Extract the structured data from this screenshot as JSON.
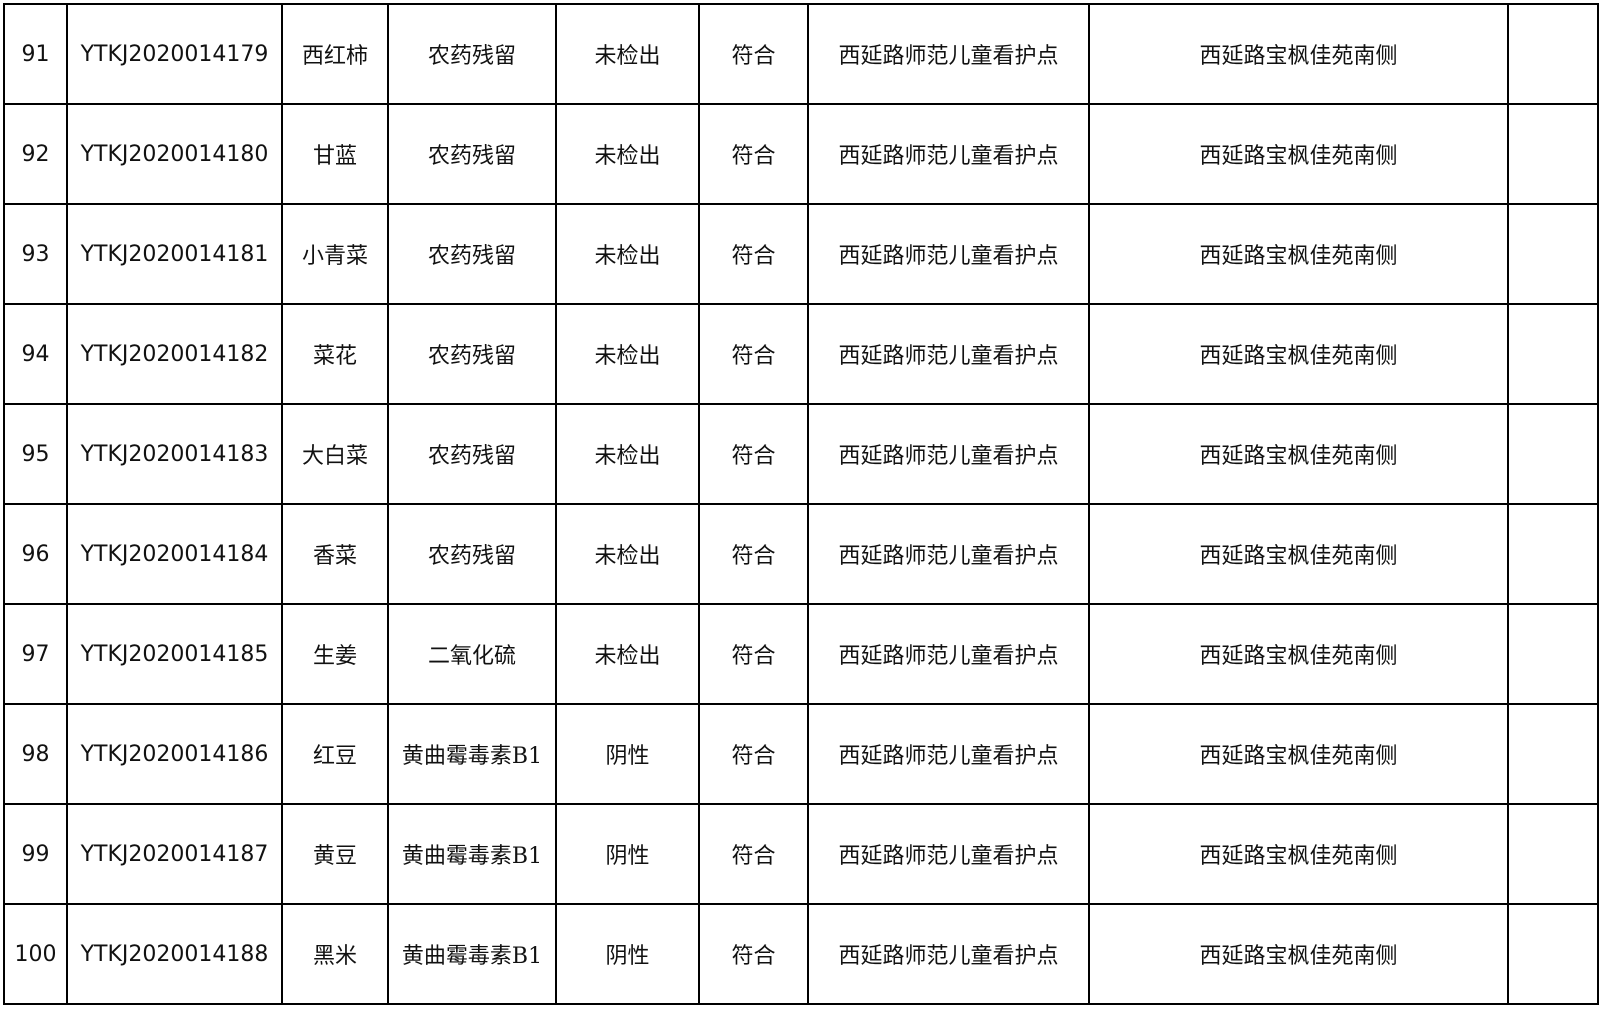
{
  "table": {
    "rows": [
      [
        91,
        "YTKJ2020014179",
        "西红柿",
        "农药残留",
        "未检出",
        "符合",
        "西延路师范儿童看护点",
        "西延路宝枫佳苑南侧"
      ],
      [
        92,
        "YTKJ2020014180",
        "甘蓝",
        "农药残留",
        "未检出",
        "符合",
        "西延路师范儿童看护点",
        "西延路宝枫佳苑南侧"
      ],
      [
        93,
        "YTKJ2020014181",
        "小青菜",
        "农药残留",
        "未检出",
        "符合",
        "西延路师范儿童看护点",
        "西延路宝枫佳苑南侧"
      ],
      [
        94,
        "YTKJ2020014182",
        "菜花",
        "农药残留",
        "未检出",
        "符合",
        "西延路师范儿童看护点",
        "西延路宝枫佳苑南侧"
      ],
      [
        95,
        "YTKJ2020014183",
        "大白菜",
        "农药残留",
        "未检出",
        "符合",
        "西延路师范儿童看护点",
        "西延路宝枫佳苑南侧"
      ],
      [
        96,
        "YTKJ2020014184",
        "香菜",
        "农药残留",
        "未检出",
        "符合",
        "西延路师范儿童看护点",
        "西延路宝枫佳苑南侧"
      ],
      [
        97,
        "YTKJ2020014185",
        "生姜",
        "二氧化硫",
        "未检出",
        "符合",
        "西延路师范儿童看护点",
        "西延路宝枫佳苑南侧"
      ],
      [
        98,
        "YTKJ2020014186",
        "红豆",
        "黄曲霉毒素B1",
        "阴性",
        "符合",
        "西延路师范儿童看护点",
        "西延路宝枫佳苑南侧"
      ],
      [
        99,
        "YTKJ2020014187",
        "黄豆",
        "黄曲霉毒素B1",
        "阴性",
        "符合",
        "西延路师范儿童看护点",
        "西延路宝枫佳苑南侧"
      ],
      [
        100,
        "YTKJ2020014188",
        "黑米",
        "黄曲霉毒素B1",
        "阴性",
        "符合",
        "西延路师范儿童看护点",
        "西延路宝枫佳苑南侧"
      ]
    ]
  }
}
